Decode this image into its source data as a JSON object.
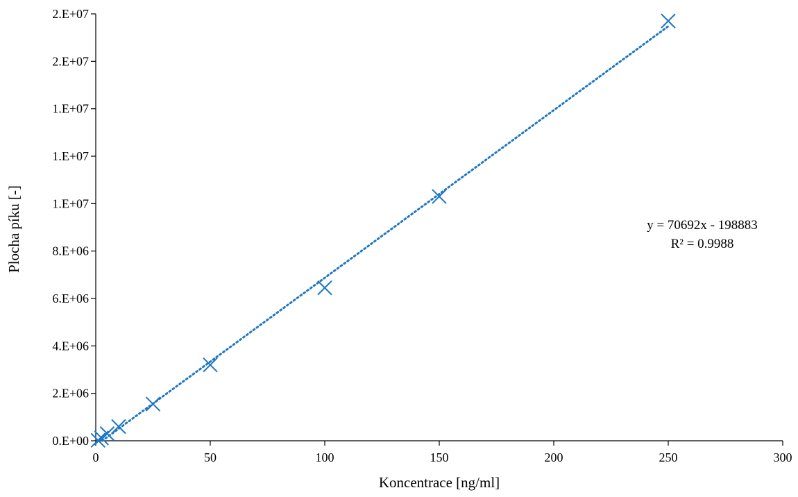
{
  "chart_data": {
    "type": "scatter",
    "title": "",
    "xlabel": "Koncentrace [ng/ml]",
    "ylabel": "Plocha píku [-]",
    "xlim": [
      0,
      300
    ],
    "ylim": [
      0,
      18000000
    ],
    "x_ticks": [
      0,
      50,
      100,
      150,
      200,
      250,
      300
    ],
    "x_tick_labels": [
      "0",
      "50",
      "100",
      "150",
      "200",
      "250",
      "300"
    ],
    "y_ticks": [
      0,
      2000000,
      4000000,
      6000000,
      8000000,
      10000000,
      12000000,
      14000000,
      16000000,
      18000000
    ],
    "y_tick_labels": [
      "0.E+00",
      "2.E+06",
      "4.E+06",
      "6.E+06",
      "8.E+06",
      "1.E+07",
      "1.E+07",
      "1.E+07",
      "2.E+07",
      "2.E+07"
    ],
    "grid": false,
    "legend": "none",
    "series": [
      {
        "marker": "x",
        "color": "#1f77c2",
        "x": [
          1,
          2.5,
          5,
          10,
          25,
          50,
          100,
          150,
          250
        ],
        "y": [
          20000,
          120000,
          300000,
          600000,
          1550000,
          3200000,
          6450000,
          10300000,
          17700000
        ]
      }
    ],
    "trendline": {
      "type": "linear",
      "style": "dotted",
      "color": "#1f77c2",
      "slope": 70692,
      "intercept": -198883,
      "x_range": [
        0,
        250
      ]
    },
    "annotations": [
      "y = 70692x - 198883",
      "R² = 0.9988"
    ]
  }
}
